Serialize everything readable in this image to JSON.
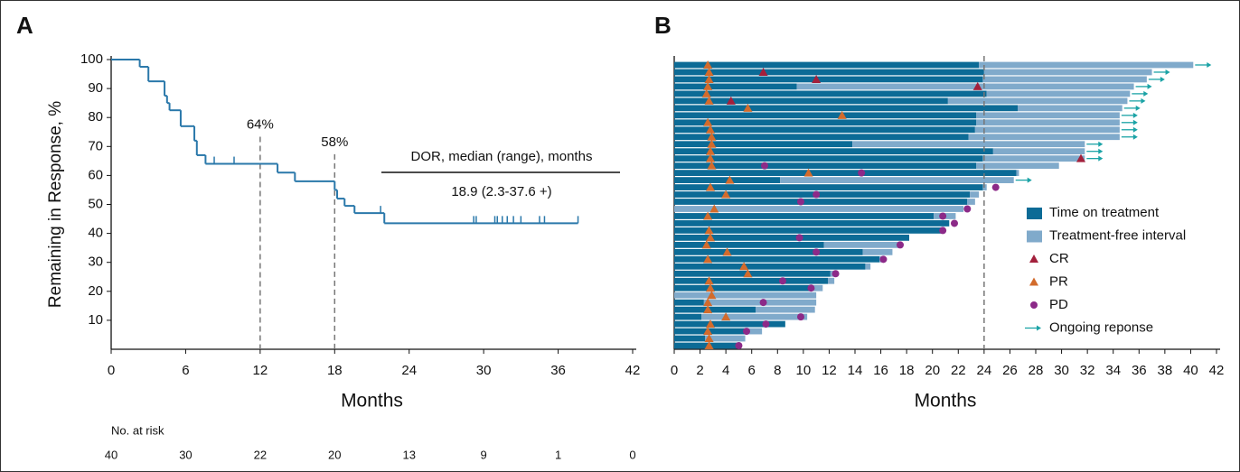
{
  "chart_data": [
    {
      "type": "km",
      "panel_label": "A",
      "y_label": "Remaining in Response, %",
      "x_label": "Months",
      "color": "#2a78aa",
      "x": [
        0,
        2.3,
        3.0,
        4.3,
        4.5,
        4.7,
        5.6,
        6.7,
        6.9,
        7.6,
        13.4,
        14.8,
        18.0,
        18.2,
        18.8,
        19.6,
        22.0,
        37.6
      ],
      "values": [
        100,
        97.5,
        92.5,
        87.5,
        85,
        82.5,
        77,
        72,
        67,
        64,
        61,
        58,
        55,
        52,
        49.5,
        47,
        43.5,
        43.5
      ],
      "censor_x": [
        8.3,
        9.9,
        21.7,
        29.2,
        29.4,
        30.9,
        31.1,
        31.5,
        31.9,
        32.4,
        33.0,
        34.5,
        34.9,
        37.6
      ],
      "censor_y": [
        64,
        64,
        47,
        43.5,
        43.5,
        43.5,
        43.5,
        43.5,
        43.5,
        43.5,
        43.5,
        43.5,
        43.5,
        43.5
      ],
      "landmarks": [
        {
          "x": 12,
          "value": 64,
          "label": "64%"
        },
        {
          "x": 18,
          "value": 58,
          "label": "58%"
        }
      ],
      "annotation_title": "DOR, median (range), months",
      "annotation_text": "18.9 (2.3-37.6 +)",
      "xlim": [
        0,
        42
      ],
      "ylim": [
        0,
        100
      ],
      "xticks": [
        0,
        6,
        12,
        18,
        24,
        30,
        36,
        42
      ],
      "yticks": [
        10,
        20,
        30,
        40,
        50,
        60,
        70,
        80,
        90,
        100
      ],
      "risk_title": "No. at risk",
      "at_risk": [
        40,
        30,
        22,
        20,
        13,
        9,
        1,
        0
      ]
    },
    {
      "type": "swimmer",
      "panel_label": "B",
      "x_label": "Months",
      "reference_x": 24,
      "xlim": [
        0,
        42
      ],
      "xticks": [
        0,
        2,
        4,
        6,
        8,
        10,
        12,
        14,
        16,
        18,
        20,
        22,
        24,
        26,
        28,
        30,
        32,
        34,
        36,
        38,
        40,
        42
      ],
      "series": [
        {
          "name": "Time on treatment",
          "color": "#0c6b96",
          "values": [
            23.6,
            24.0,
            23.9,
            9.5,
            24.2,
            21.2,
            26.6,
            23.4,
            23.4,
            23.3,
            22.8,
            13.8,
            24.7,
            23.9,
            23.4,
            26.5,
            8.2,
            23.9,
            22.9,
            22.7,
            0,
            20.1,
            21.3,
            20.7,
            18.2,
            11.6,
            14.6,
            15.9,
            14.8,
            12.1,
            11.9,
            10.6,
            0,
            2.3,
            6.3,
            2.1,
            8.6,
            5.7,
            2.4,
            4.9
          ]
        },
        {
          "name": "Treatment-free interval",
          "color": "#80aacb",
          "values": [
            16.6,
            13.0,
            12.7,
            26.1,
            11.1,
            13.9,
            8.1,
            11.1,
            11.1,
            11.2,
            11.7,
            18.0,
            7.1,
            7.9,
            6.4,
            0.2,
            18.1,
            0.3,
            0.7,
            0.6,
            22.4,
            1.7,
            0,
            0,
            0,
            6.0,
            2.3,
            0.4,
            0.4,
            0.5,
            0.5,
            0.9,
            11.0,
            8.7,
            4.6,
            8.2,
            0,
            1.1,
            3.1,
            0
          ]
        }
      ],
      "markers": [
        {
          "name": "CR",
          "color": "#a3203c",
          "shape": "triangle",
          "values": [
            null,
            6.9,
            11.0,
            23.5,
            null,
            4.4,
            null,
            null,
            null,
            null,
            null,
            null,
            null,
            31.5,
            null,
            null,
            null,
            null,
            null,
            null,
            null,
            null,
            null,
            null,
            null,
            null,
            null,
            null,
            null,
            null,
            null,
            null,
            null,
            null,
            null,
            null,
            null,
            null,
            null,
            null
          ]
        },
        {
          "name": "PR",
          "color": "#d26b2c",
          "shape": "triangle",
          "values": [
            2.6,
            2.7,
            2.7,
            2.6,
            2.5,
            2.7,
            5.7,
            13.0,
            2.6,
            2.8,
            2.9,
            2.9,
            2.8,
            2.8,
            2.9,
            10.4,
            4.3,
            2.8,
            4.0,
            null,
            3.1,
            2.6,
            null,
            2.7,
            2.8,
            2.5,
            4.1,
            2.6,
            5.4,
            5.7,
            2.7,
            2.8,
            2.9,
            2.6,
            2.6,
            4.0,
            2.8,
            2.6,
            2.7,
            2.7
          ]
        },
        {
          "name": "PD",
          "color": "#8c2a88",
          "shape": "circle",
          "values": [
            null,
            null,
            null,
            null,
            null,
            null,
            null,
            null,
            null,
            null,
            null,
            null,
            null,
            null,
            7.0,
            14.5,
            null,
            24.9,
            11.0,
            9.8,
            22.7,
            20.8,
            21.7,
            20.8,
            9.7,
            17.5,
            11.0,
            16.2,
            null,
            12.5,
            8.4,
            10.6,
            null,
            6.9,
            null,
            9.8,
            7.1,
            5.6,
            null,
            5.0
          ]
        }
      ],
      "ongoing": {
        "name": "Ongoing reponse",
        "color": "#1ba3a6",
        "values": [
          true,
          true,
          true,
          true,
          true,
          true,
          true,
          true,
          true,
          true,
          true,
          true,
          true,
          true,
          false,
          false,
          true,
          false,
          false,
          false,
          false,
          false,
          false,
          false,
          false,
          false,
          false,
          false,
          false,
          false,
          false,
          false,
          false,
          false,
          false,
          false,
          false,
          false,
          false,
          false
        ]
      }
    }
  ]
}
